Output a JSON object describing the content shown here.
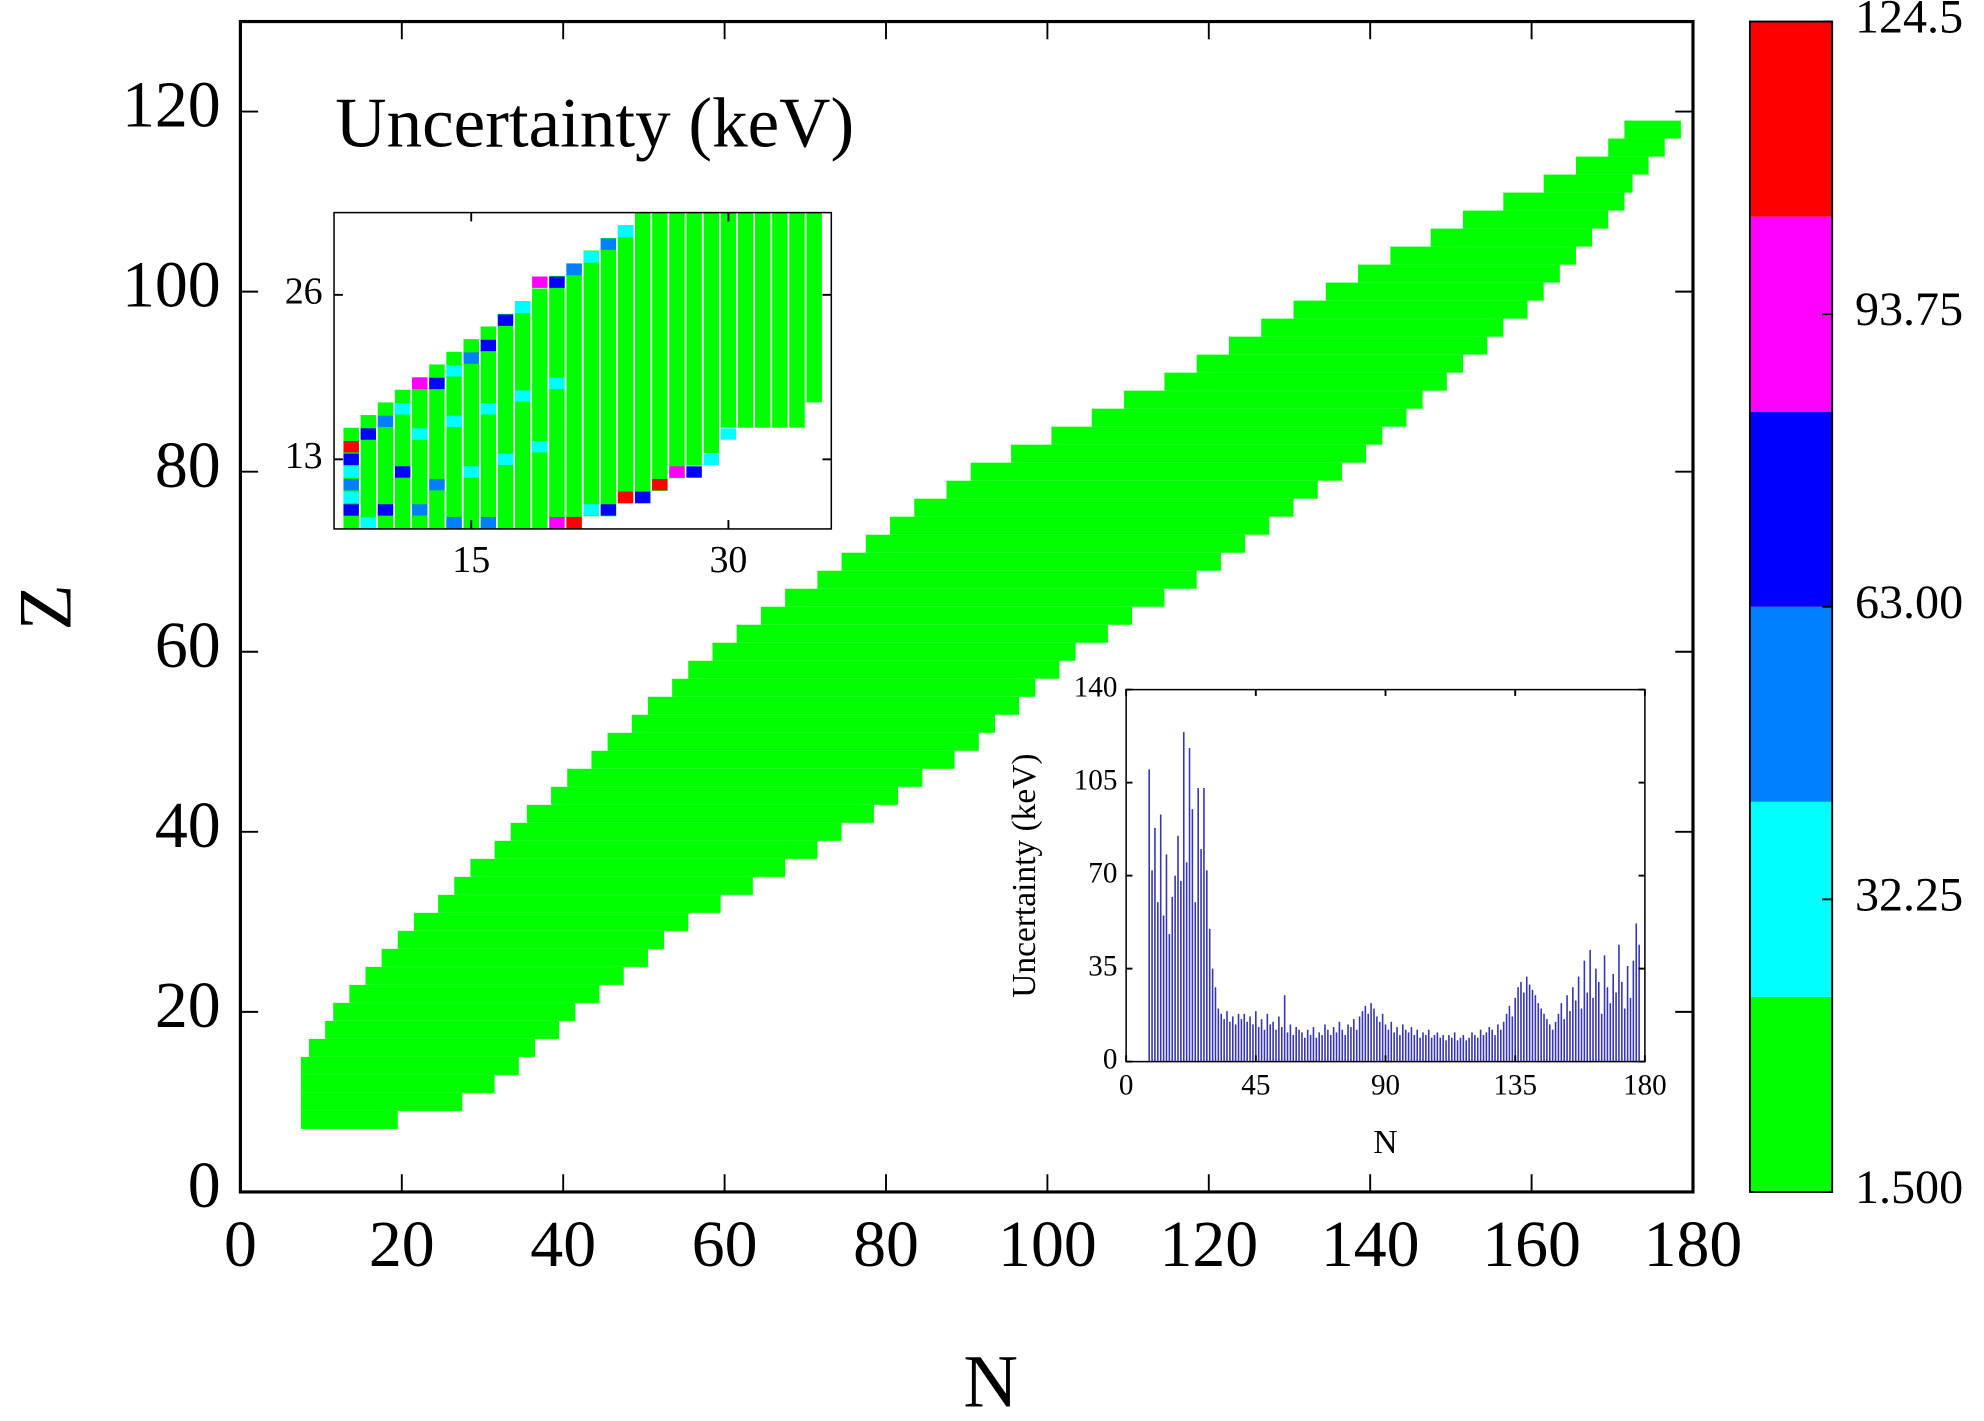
{
  "chart_data": [
    {
      "type": "heatmap",
      "annotation": "Uncertainty (keV)",
      "xlabel": "N",
      "ylabel": "Z",
      "xlim": [
        0,
        180
      ],
      "ylim": [
        0,
        130
      ],
      "xticks": [
        0,
        20,
        40,
        60,
        80,
        100,
        120,
        140,
        160,
        180
      ],
      "yticks": [
        0,
        20,
        40,
        60,
        80,
        100,
        120
      ],
      "rows": {
        "Z": [
          8,
          10,
          12,
          14,
          16,
          18,
          20,
          22,
          24,
          26,
          28,
          30,
          32,
          34,
          36,
          38,
          40,
          42,
          44,
          46,
          48,
          50,
          52,
          54,
          56,
          58,
          60,
          62,
          64,
          66,
          68,
          70,
          72,
          74,
          76,
          78,
          80,
          82,
          84,
          86,
          88,
          90,
          92,
          94,
          96,
          98,
          100,
          102,
          104,
          106,
          108,
          110,
          112,
          114,
          116,
          118
        ],
        "N_min": [
          8,
          8,
          8,
          8,
          9,
          11,
          12,
          14,
          16,
          18,
          20,
          22,
          25,
          27,
          29,
          32,
          34,
          36,
          39,
          41,
          44,
          46,
          49,
          51,
          54,
          56,
          59,
          62,
          65,
          68,
          72,
          75,
          78,
          81,
          84,
          88,
          91,
          96,
          101,
          106,
          110,
          115,
          119,
          123,
          127,
          131,
          135,
          139,
          143,
          148,
          152,
          157,
          162,
          166,
          170,
          172
        ],
        "N_max": [
          19,
          27,
          31,
          34,
          36,
          39,
          41,
          44,
          47,
          50,
          52,
          55,
          59,
          63,
          67,
          71,
          74,
          78,
          81,
          84,
          88,
          91,
          93,
          96,
          98,
          101,
          103,
          107,
          110,
          114,
          118,
          121,
          124,
          127,
          130,
          133,
          136,
          139,
          141,
          144,
          146,
          149,
          151,
          154,
          156,
          159,
          161,
          163,
          165,
          167,
          169,
          171,
          172,
          174,
          176,
          178
        ],
        "values": [
          10,
          10,
          10,
          10,
          10,
          10,
          10,
          10,
          10,
          10,
          10,
          10,
          10,
          10,
          10,
          10,
          10,
          10,
          10,
          10,
          10,
          10,
          10,
          10,
          10,
          10,
          10,
          10,
          10,
          10,
          10,
          10,
          10,
          10,
          10,
          10,
          10,
          10,
          10,
          10,
          10,
          10,
          10,
          10,
          10,
          10,
          10,
          10,
          10,
          10,
          10,
          10,
          10,
          10,
          10,
          10
        ]
      }
    },
    {
      "type": "heatmap",
      "xlim": [
        7,
        36
      ],
      "ylim": [
        7.5,
        32.5
      ],
      "xticks": [
        15,
        30
      ],
      "yticks": [
        13,
        26
      ],
      "columns": {
        "N": [
          8,
          9,
          10,
          11,
          12,
          13,
          14,
          15,
          16,
          17,
          18,
          19,
          20,
          21,
          22,
          23,
          24,
          25,
          26,
          27,
          28,
          29,
          30,
          31,
          32,
          33,
          34,
          35
        ],
        "Z_min": [
          8,
          8,
          8,
          8,
          8,
          8,
          8,
          8,
          8,
          8,
          8,
          8,
          8,
          8,
          9,
          9,
          10,
          10,
          11,
          12,
          13,
          14,
          16,
          16,
          16,
          16,
          16,
          18
        ],
        "Z_max": [
          15,
          16,
          17,
          18,
          19,
          20,
          21,
          22,
          23,
          24,
          25,
          26,
          27,
          28,
          29,
          30,
          31,
          32,
          32,
          32,
          32,
          32,
          32,
          32,
          32,
          32,
          32,
          32
        ],
        "values": [
          10,
          10,
          10,
          10,
          10,
          10,
          10,
          10,
          10,
          10,
          10,
          10,
          10,
          10,
          10,
          10,
          10,
          10,
          10,
          10,
          10,
          10,
          10,
          10,
          10,
          10,
          10,
          10
        ]
      },
      "cells": {
        "N": [
          8,
          8,
          8,
          8,
          8,
          8,
          9,
          9,
          10,
          10,
          11,
          12,
          13,
          14,
          15,
          16,
          17,
          18,
          19,
          20,
          21,
          22,
          23,
          24,
          20,
          21,
          22,
          23,
          24,
          25,
          26,
          27,
          28,
          29,
          30,
          12,
          14,
          16,
          11,
          13,
          15,
          17,
          19,
          12,
          14,
          16,
          18,
          20
        ],
        "Z": [
          14,
          13,
          12,
          11,
          10,
          9,
          15,
          8,
          16,
          9,
          17,
          19,
          19,
          20,
          21,
          22,
          24,
          25,
          27,
          27,
          28,
          29,
          30,
          31,
          8,
          8,
          9,
          9,
          10,
          10,
          11,
          12,
          12,
          13,
          15,
          9,
          8,
          8,
          12,
          11,
          12,
          13,
          14,
          15,
          16,
          17,
          18,
          19
        ],
        "values": [
          115,
          70,
          30,
          50,
          30,
          70,
          70,
          30,
          50,
          70,
          30,
          95,
          70,
          30,
          50,
          70,
          70,
          30,
          95,
          70,
          50,
          30,
          50,
          30,
          95,
          115,
          30,
          70,
          115,
          70,
          115,
          95,
          70,
          30,
          30,
          50,
          50,
          50,
          70,
          50,
          30,
          30,
          30,
          30,
          30,
          30,
          30,
          30
        ]
      }
    },
    {
      "type": "bar",
      "xlabel": "N",
      "ylabel": "Uncertainty (keV)",
      "color": "#3535b5",
      "xlim": [
        0,
        180
      ],
      "ylim": [
        0,
        140
      ],
      "xticks": [
        0,
        45,
        90,
        135,
        180
      ],
      "yticks": [
        0,
        35,
        70,
        105,
        140
      ],
      "x": [
        8,
        9,
        10,
        11,
        12,
        13,
        14,
        15,
        16,
        17,
        18,
        19,
        20,
        21,
        22,
        23,
        24,
        25,
        26,
        27,
        28,
        29,
        30,
        31,
        32,
        33,
        34,
        35,
        36,
        37,
        38,
        39,
        40,
        41,
        42,
        43,
        44,
        45,
        46,
        47,
        48,
        49,
        50,
        51,
        52,
        53,
        54,
        55,
        56,
        57,
        58,
        59,
        60,
        61,
        62,
        63,
        64,
        65,
        66,
        67,
        68,
        69,
        70,
        71,
        72,
        73,
        74,
        75,
        76,
        77,
        78,
        79,
        80,
        81,
        82,
        83,
        84,
        85,
        86,
        87,
        88,
        89,
        90,
        91,
        92,
        93,
        94,
        95,
        96,
        97,
        98,
        99,
        100,
        101,
        102,
        103,
        104,
        105,
        106,
        107,
        108,
        109,
        110,
        111,
        112,
        113,
        114,
        115,
        116,
        117,
        118,
        119,
        120,
        121,
        122,
        123,
        124,
        125,
        126,
        127,
        128,
        129,
        130,
        131,
        132,
        133,
        134,
        135,
        136,
        137,
        138,
        139,
        140,
        141,
        142,
        143,
        144,
        145,
        146,
        147,
        148,
        149,
        150,
        151,
        152,
        153,
        154,
        155,
        156,
        157,
        158,
        159,
        160,
        161,
        162,
        163,
        164,
        165,
        166,
        167,
        168,
        169,
        170,
        171,
        172,
        173,
        174,
        175,
        176,
        177,
        178
      ],
      "values": [
        110,
        72,
        88,
        60,
        93,
        55,
        78,
        48,
        62,
        70,
        85,
        68,
        124,
        75,
        118,
        95,
        60,
        103,
        80,
        103,
        72,
        50,
        35,
        28,
        20,
        18,
        16,
        19,
        15,
        17,
        14,
        18,
        16,
        18,
        15,
        17,
        14,
        19,
        13,
        16,
        12,
        18,
        14,
        15,
        12,
        17,
        13,
        25,
        11,
        14,
        10,
        13,
        12,
        11,
        9,
        12,
        10,
        13,
        9,
        11,
        10,
        14,
        12,
        10,
        13,
        11,
        15,
        12,
        10,
        14,
        13,
        16,
        12,
        17,
        19,
        21,
        18,
        22,
        20,
        17,
        15,
        18,
        14,
        12,
        15,
        11,
        13,
        10,
        14,
        12,
        11,
        13,
        10,
        12,
        9,
        11,
        10,
        12,
        9,
        10,
        11,
        9,
        10,
        8,
        10,
        9,
        11,
        8,
        9,
        10,
        8,
        9,
        11,
        10,
        9,
        12,
        10,
        11,
        13,
        12,
        10,
        14,
        12,
        15,
        18,
        21,
        17,
        24,
        28,
        30,
        26,
        32,
        29,
        27,
        25,
        22,
        20,
        18,
        16,
        14,
        12,
        15,
        18,
        22,
        16,
        25,
        19,
        28,
        23,
        32,
        20,
        38,
        26,
        42,
        24,
        35,
        30,
        18,
        40,
        28,
        22,
        33,
        26,
        44,
        30,
        20,
        36,
        24,
        38,
        52,
        44
      ]
    },
    {
      "type": "colorbar",
      "ylim": [
        1.5,
        124.5
      ],
      "levels": [
        1.5,
        22,
        42.5,
        63,
        83.5,
        104,
        124.5
      ],
      "colors": [
        "#00ff00",
        "#00ffff",
        "#0080ff",
        "#0000ff",
        "#ff00ff",
        "#ff0000"
      ],
      "yticks": [
        {
          "value": 1.5,
          "label": "1.500"
        },
        32.25,
        {
          "value": 63,
          "label": "63.00"
        },
        93.75,
        124.5
      ]
    }
  ]
}
